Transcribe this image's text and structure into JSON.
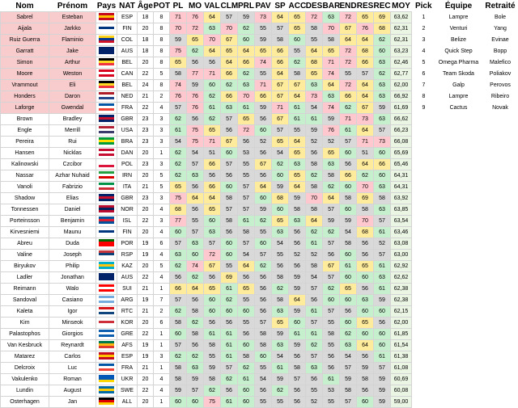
{
  "headers": [
    "Nom",
    "Prénom",
    "Pays",
    "NAT",
    "Âge",
    "POT",
    "PL",
    "MO",
    "VAL",
    "CLM",
    "PRL",
    "PAV",
    "SP",
    "ACC",
    "DES",
    "BAR",
    "END",
    "RES",
    "REC",
    "MOY",
    "Pick",
    "Équipe",
    "Retraité"
  ],
  "pick_table": [
    {
      "pick": "1",
      "team": "Lampre",
      "retired": "Bole"
    },
    {
      "pick": "2",
      "team": "Venturi",
      "retired": "Yang"
    },
    {
      "pick": "3",
      "team": "Belize",
      "retired": "Evinae"
    },
    {
      "pick": "4",
      "team": "Quick Step",
      "retired": "Bopp"
    },
    {
      "pick": "5",
      "team": "Omega Pharma",
      "retired": "Malefico"
    },
    {
      "pick": "6",
      "team": "Team Skoda",
      "retired": "Poliakov"
    },
    {
      "pick": "7",
      "team": "Galp",
      "retired": "Perovos"
    },
    {
      "pick": "8",
      "team": "Lampre",
      "retired": "Ribeiro"
    },
    {
      "pick": "9",
      "team": "Cactus",
      "retired": "Novak"
    }
  ],
  "flag_colors": {
    "ESP": [
      "#c60b1e",
      "#ffc400",
      "#c60b1e"
    ],
    "FIN": [
      "#ffffff",
      "#003580",
      "#ffffff"
    ],
    "COL": [
      "#fcd116",
      "#003893",
      "#ce1126"
    ],
    "AUS": [
      "#012169",
      "#012169",
      "#012169"
    ],
    "BEL": [
      "#000000",
      "#fdda24",
      "#ef3340"
    ],
    "CAN": [
      "#d80621",
      "#ffffff",
      "#d80621"
    ],
    "NED": [
      "#ae1c28",
      "#ffffff",
      "#21468b"
    ],
    "FRA": [
      "#0055a4",
      "#ffffff",
      "#ef4135"
    ],
    "GBR": [
      "#012169",
      "#c8102e",
      "#012169"
    ],
    "USA": [
      "#b22234",
      "#ffffff",
      "#3c3b6e"
    ],
    "BRA": [
      "#009c3b",
      "#ffdf00",
      "#009c3b"
    ],
    "DAN": [
      "#c60c30",
      "#ffffff",
      "#c60c30"
    ],
    "POL": [
      "#ffffff",
      "#ffffff",
      "#dc143c"
    ],
    "IRN": [
      "#239f40",
      "#ffffff",
      "#da0000"
    ],
    "ITA": [
      "#009246",
      "#ffffff",
      "#ce2b37"
    ],
    "NOR": [
      "#ba0c2f",
      "#00205b",
      "#ba0c2f"
    ],
    "ISL": [
      "#02529c",
      "#dc1e35",
      "#02529c"
    ],
    "POR": [
      "#006600",
      "#ff0000",
      "#ff0000"
    ],
    "RSP": [
      "#c6363c",
      "#0c4076",
      "#ffffff"
    ],
    "KAZ": [
      "#00afca",
      "#fec50c",
      "#00afca"
    ],
    "SUI": [
      "#ff0000",
      "#ffffff",
      "#ff0000"
    ],
    "ARG": [
      "#74acdf",
      "#ffffff",
      "#74acdf"
    ],
    "RTC": [
      "#d7141a",
      "#ffffff",
      "#11457e"
    ],
    "KOR": [
      "#ffffff",
      "#cd2e3a",
      "#ffffff"
    ],
    "GRE": [
      "#0d5eaf",
      "#ffffff",
      "#0d5eaf"
    ],
    "AFS": [
      "#007a4d",
      "#ffb612",
      "#de3831"
    ],
    "SWE": [
      "#006aa7",
      "#fecc00",
      "#006aa7"
    ],
    "RUS": [
      "#ffffff",
      "#0039a6",
      "#d52b1e"
    ],
    "UKR": [
      "#0057b7",
      "#0057b7",
      "#ffd700"
    ],
    "ALL": [
      "#000000",
      "#dd0000",
      "#ffce00"
    ]
  },
  "rows": [
    {
      "nom": "Sabrel",
      "prenom": "Esteban",
      "nat": "ESP",
      "age": "18",
      "pot": "8",
      "pl": "71",
      "mo": "76",
      "val": "64",
      "clm": "57",
      "prl": "59",
      "pav": "73",
      "sp": "64",
      "acc": "65",
      "des": "72",
      "bar": "63",
      "end": "72",
      "res": "65",
      "rec": "69",
      "moy": "63,62"
    },
    {
      "nom": "Aijala",
      "prenom": "Jarkko",
      "nat": "FIN",
      "age": "20",
      "pot": "8",
      "pl": "70",
      "mo": "72",
      "val": "63",
      "clm": "70",
      "prl": "62",
      "pav": "55",
      "sp": "57",
      "acc": "65",
      "des": "58",
      "bar": "70",
      "end": "67",
      "res": "76",
      "rec": "68",
      "moy": "62,31"
    },
    {
      "nom": "Ruiz Guerra",
      "prenom": "Flaminio",
      "nat": "COL",
      "age": "18",
      "pot": "8",
      "pl": "59",
      "mo": "65",
      "val": "70",
      "clm": "67",
      "prl": "60",
      "pav": "59",
      "sp": "58",
      "acc": "60",
      "des": "55",
      "bar": "58",
      "end": "64",
      "res": "64",
      "rec": "62",
      "moy": "62,31"
    },
    {
      "nom": "Garratt",
      "prenom": "Jake",
      "nat": "AUS",
      "age": "18",
      "pot": "8",
      "pl": "75",
      "mo": "62",
      "val": "64",
      "clm": "65",
      "prl": "64",
      "pav": "65",
      "sp": "66",
      "acc": "55",
      "des": "64",
      "bar": "65",
      "end": "72",
      "res": "68",
      "rec": "60",
      "moy": "63,23"
    },
    {
      "nom": "Simon",
      "prenom": "Arthur",
      "nat": "BEL",
      "age": "20",
      "pot": "8",
      "pl": "65",
      "mo": "56",
      "val": "56",
      "clm": "64",
      "prl": "66",
      "pav": "74",
      "sp": "66",
      "acc": "62",
      "des": "68",
      "bar": "71",
      "end": "72",
      "res": "66",
      "rec": "63",
      "moy": "62,46"
    },
    {
      "nom": "Moore",
      "prenom": "Weston",
      "nat": "CAN",
      "age": "22",
      "pot": "5",
      "pl": "58",
      "mo": "77",
      "val": "71",
      "clm": "66",
      "prl": "62",
      "pav": "55",
      "sp": "64",
      "acc": "58",
      "des": "65",
      "bar": "74",
      "end": "55",
      "res": "57",
      "rec": "62",
      "moy": "62,77"
    },
    {
      "nom": "Vrammout",
      "prenom": "Eli",
      "nat": "BEL",
      "age": "24",
      "pot": "8",
      "pl": "74",
      "mo": "59",
      "val": "60",
      "clm": "62",
      "prl": "63",
      "pav": "71",
      "sp": "67",
      "acc": "67",
      "des": "63",
      "bar": "64",
      "end": "72",
      "res": "64",
      "rec": "63",
      "moy": "62,00"
    },
    {
      "nom": "Honders",
      "prenom": "Daron",
      "nat": "NED",
      "age": "21",
      "pot": "2",
      "pl": "76",
      "mo": "76",
      "val": "62",
      "clm": "66",
      "prl": "70",
      "pav": "66",
      "sp": "67",
      "acc": "64",
      "des": "73",
      "bar": "63",
      "end": "66",
      "res": "64",
      "rec": "63",
      "moy": "66,92"
    },
    {
      "nom": "Laforge",
      "prenom": "Gwendal",
      "nat": "FRA",
      "age": "22",
      "pot": "4",
      "pl": "57",
      "mo": "76",
      "val": "61",
      "clm": "63",
      "prl": "61",
      "pav": "59",
      "sp": "71",
      "acc": "61",
      "des": "54",
      "bar": "74",
      "end": "62",
      "res": "67",
      "rec": "59",
      "moy": "61,69"
    },
    {
      "nom": "Brown",
      "prenom": "Bradley",
      "nat": "GBR",
      "age": "23",
      "pot": "3",
      "pl": "62",
      "mo": "56",
      "val": "62",
      "clm": "57",
      "prl": "65",
      "pav": "56",
      "sp": "67",
      "acc": "61",
      "des": "61",
      "bar": "59",
      "end": "71",
      "res": "73",
      "rec": "63",
      "moy": "66,62"
    },
    {
      "nom": "Engle",
      "prenom": "Merrill",
      "nat": "USA",
      "age": "23",
      "pot": "3",
      "pl": "61",
      "mo": "75",
      "val": "65",
      "clm": "56",
      "prl": "72",
      "pav": "60",
      "sp": "57",
      "acc": "55",
      "des": "59",
      "bar": "76",
      "end": "61",
      "res": "64",
      "rec": "57",
      "moy": "66,23"
    },
    {
      "nom": "Pereira",
      "prenom": "Rui",
      "nat": "BRA",
      "age": "23",
      "pot": "3",
      "pl": "54",
      "mo": "75",
      "val": "71",
      "clm": "67",
      "prl": "56",
      "pav": "52",
      "sp": "65",
      "acc": "64",
      "des": "52",
      "bar": "52",
      "end": "57",
      "res": "71",
      "rec": "73",
      "moy": "66,08"
    },
    {
      "nom": "Hansen",
      "prenom": "Nicklas",
      "nat": "DAN",
      "age": "20",
      "pot": "1",
      "pl": "62",
      "mo": "54",
      "val": "51",
      "clm": "60",
      "prl": "53",
      "pav": "56",
      "sp": "54",
      "acc": "65",
      "des": "56",
      "bar": "65",
      "end": "60",
      "res": "51",
      "rec": "60",
      "moy": "65,69"
    },
    {
      "nom": "Kalinowski",
      "prenom": "Czcibor",
      "nat": "POL",
      "age": "23",
      "pot": "3",
      "pl": "62",
      "mo": "57",
      "val": "66",
      "clm": "57",
      "prl": "55",
      "pav": "67",
      "sp": "62",
      "acc": "63",
      "des": "58",
      "bar": "63",
      "end": "56",
      "res": "64",
      "rec": "66",
      "moy": "65,46"
    },
    {
      "nom": "Nassar",
      "prenom": "Azhar Nuhaid",
      "nat": "IRN",
      "age": "20",
      "pot": "5",
      "pl": "62",
      "mo": "63",
      "val": "56",
      "clm": "56",
      "prl": "55",
      "pav": "56",
      "sp": "60",
      "acc": "65",
      "des": "62",
      "bar": "58",
      "end": "66",
      "res": "62",
      "rec": "60",
      "moy": "64,31"
    },
    {
      "nom": "Vanoli",
      "prenom": "Fabrizio",
      "nat": "ITA",
      "age": "21",
      "pot": "5",
      "pl": "65",
      "mo": "56",
      "val": "66",
      "clm": "60",
      "prl": "57",
      "pav": "64",
      "sp": "59",
      "acc": "64",
      "des": "58",
      "bar": "62",
      "end": "60",
      "res": "70",
      "rec": "63",
      "moy": "64,31"
    },
    {
      "nom": "Shadow",
      "prenom": "Elias",
      "nat": "GBR",
      "age": "23",
      "pot": "3",
      "pl": "75",
      "mo": "64",
      "val": "64",
      "clm": "58",
      "prl": "57",
      "pav": "60",
      "sp": "68",
      "acc": "59",
      "des": "70",
      "bar": "64",
      "end": "58",
      "res": "69",
      "rec": "58",
      "moy": "63,92"
    },
    {
      "nom": "Tonnessen",
      "prenom": "Daniel",
      "nat": "NOR",
      "age": "20",
      "pot": "4",
      "pl": "68",
      "mo": "56",
      "val": "65",
      "clm": "57",
      "prl": "57",
      "pav": "59",
      "sp": "60",
      "acc": "58",
      "des": "58",
      "bar": "57",
      "end": "60",
      "res": "58",
      "rec": "63",
      "moy": "63,85"
    },
    {
      "nom": "Porteinsson",
      "prenom": "Benjamin",
      "nat": "ISL",
      "age": "22",
      "pot": "3",
      "pl": "77",
      "mo": "55",
      "val": "60",
      "clm": "58",
      "prl": "61",
      "pav": "62",
      "sp": "65",
      "acc": "63",
      "des": "64",
      "bar": "59",
      "end": "59",
      "res": "70",
      "rec": "57",
      "moy": "63,54"
    },
    {
      "nom": "Kirvesniemi",
      "prenom": "Maunu",
      "nat": "FIN",
      "age": "20",
      "pot": "4",
      "pl": "60",
      "mo": "57",
      "val": "63",
      "clm": "56",
      "prl": "58",
      "pav": "55",
      "sp": "63",
      "acc": "56",
      "des": "62",
      "bar": "62",
      "end": "54",
      "res": "68",
      "rec": "61",
      "moy": "63,46"
    },
    {
      "nom": "Abreu",
      "prenom": "Duda",
      "nat": "POR",
      "age": "19",
      "pot": "6",
      "pl": "57",
      "mo": "63",
      "val": "57",
      "clm": "60",
      "prl": "57",
      "pav": "60",
      "sp": "54",
      "acc": "56",
      "des": "61",
      "bar": "57",
      "end": "58",
      "res": "56",
      "rec": "52",
      "moy": "63,08"
    },
    {
      "nom": "Valine",
      "prenom": "Joseph",
      "nat": "RSP",
      "age": "19",
      "pot": "4",
      "pl": "63",
      "mo": "60",
      "val": "72",
      "clm": "60",
      "prl": "54",
      "pav": "57",
      "sp": "55",
      "acc": "52",
      "des": "52",
      "bar": "56",
      "end": "60",
      "res": "56",
      "rec": "57",
      "moy": "63,00"
    },
    {
      "nom": "Biryukov",
      "prenom": "Philip",
      "nat": "KAZ",
      "age": "20",
      "pot": "5",
      "pl": "62",
      "mo": "74",
      "val": "67",
      "clm": "55",
      "prl": "64",
      "pav": "62",
      "sp": "56",
      "acc": "56",
      "des": "58",
      "bar": "67",
      "end": "61",
      "res": "65",
      "rec": "61",
      "moy": "62,92"
    },
    {
      "nom": "Ladler",
      "prenom": "Jonathan",
      "nat": "AUS",
      "age": "22",
      "pot": "4",
      "pl": "56",
      "mo": "62",
      "val": "56",
      "clm": "69",
      "prl": "56",
      "pav": "56",
      "sp": "58",
      "acc": "59",
      "des": "54",
      "bar": "57",
      "end": "60",
      "res": "60",
      "rec": "63",
      "moy": "62,62"
    },
    {
      "nom": "Reimann",
      "prenom": "Walo",
      "nat": "SUI",
      "age": "21",
      "pot": "1",
      "pl": "66",
      "mo": "64",
      "val": "65",
      "clm": "61",
      "prl": "65",
      "pav": "56",
      "sp": "62",
      "acc": "59",
      "des": "57",
      "bar": "62",
      "end": "65",
      "res": "56",
      "rec": "61",
      "moy": "62,38"
    },
    {
      "nom": "Sandoval",
      "prenom": "Casiano",
      "nat": "ARG",
      "age": "19",
      "pot": "7",
      "pl": "57",
      "mo": "56",
      "val": "60",
      "clm": "62",
      "prl": "55",
      "pav": "56",
      "sp": "58",
      "acc": "64",
      "des": "56",
      "bar": "60",
      "end": "60",
      "res": "63",
      "rec": "59",
      "moy": "62,38"
    },
    {
      "nom": "Kaleta",
      "prenom": "Igor",
      "nat": "RTC",
      "age": "21",
      "pot": "2",
      "pl": "62",
      "mo": "58",
      "val": "60",
      "clm": "60",
      "prl": "60",
      "pav": "56",
      "sp": "63",
      "acc": "59",
      "des": "61",
      "bar": "57",
      "end": "56",
      "res": "60",
      "rec": "60",
      "moy": "62,15"
    },
    {
      "nom": "Kim",
      "prenom": "Minseok",
      "nat": "KOR",
      "age": "20",
      "pot": "6",
      "pl": "58",
      "mo": "62",
      "val": "56",
      "clm": "56",
      "prl": "55",
      "pav": "57",
      "sp": "65",
      "acc": "60",
      "des": "57",
      "bar": "55",
      "end": "60",
      "res": "65",
      "rec": "56",
      "moy": "62,00"
    },
    {
      "nom": "Palastophos",
      "prenom": "Giorgios",
      "nat": "GRE",
      "age": "22",
      "pot": "1",
      "pl": "60",
      "mo": "58",
      "val": "61",
      "clm": "61",
      "prl": "56",
      "pav": "58",
      "sp": "59",
      "acc": "61",
      "des": "61",
      "bar": "58",
      "end": "62",
      "res": "60",
      "rec": "60",
      "moy": "61,85"
    },
    {
      "nom": "Van Kesbruck",
      "prenom": "Reynardt",
      "nat": "AFS",
      "age": "19",
      "pot": "1",
      "pl": "57",
      "mo": "56",
      "val": "58",
      "clm": "61",
      "prl": "60",
      "pav": "58",
      "sp": "63",
      "acc": "59",
      "des": "62",
      "bar": "55",
      "end": "63",
      "res": "64",
      "rec": "60",
      "moy": "61,54"
    },
    {
      "nom": "Matarez",
      "prenom": "Carlos",
      "nat": "ESP",
      "age": "19",
      "pot": "3",
      "pl": "62",
      "mo": "62",
      "val": "55",
      "clm": "61",
      "prl": "58",
      "pav": "60",
      "sp": "54",
      "acc": "56",
      "des": "57",
      "bar": "56",
      "end": "54",
      "res": "56",
      "rec": "61",
      "moy": "61,38"
    },
    {
      "nom": "Delcroix",
      "prenom": "Luc",
      "nat": "FRA",
      "age": "21",
      "pot": "1",
      "pl": "58",
      "mo": "63",
      "val": "59",
      "clm": "57",
      "prl": "62",
      "pav": "55",
      "sp": "61",
      "acc": "58",
      "des": "63",
      "bar": "56",
      "end": "57",
      "res": "59",
      "rec": "57",
      "moy": "61,08"
    },
    {
      "nom": "Vakulenko",
      "prenom": "Roman",
      "nat": "UKR",
      "age": "20",
      "pot": "4",
      "pl": "58",
      "mo": "59",
      "val": "58",
      "clm": "62",
      "prl": "61",
      "pav": "54",
      "sp": "59",
      "acc": "57",
      "des": "56",
      "bar": "61",
      "end": "59",
      "res": "58",
      "rec": "59",
      "moy": "60,69"
    },
    {
      "nom": "Lundin",
      "prenom": "August",
      "nat": "SWE",
      "age": "22",
      "pot": "4",
      "pl": "59",
      "mo": "57",
      "val": "62",
      "clm": "56",
      "prl": "60",
      "pav": "56",
      "sp": "62",
      "acc": "56",
      "des": "55",
      "bar": "53",
      "end": "58",
      "res": "56",
      "rec": "59",
      "moy": "60,08"
    },
    {
      "nom": "Osterhagen",
      "prenom": "Jan",
      "nat": "ALL",
      "age": "20",
      "pot": "1",
      "pl": "60",
      "mo": "60",
      "val": "75",
      "clm": "61",
      "prl": "60",
      "pav": "55",
      "sp": "55",
      "acc": "56",
      "des": "52",
      "bar": "55",
      "end": "57",
      "res": "60",
      "rec": "59",
      "moy": "59,00"
    }
  ]
}
